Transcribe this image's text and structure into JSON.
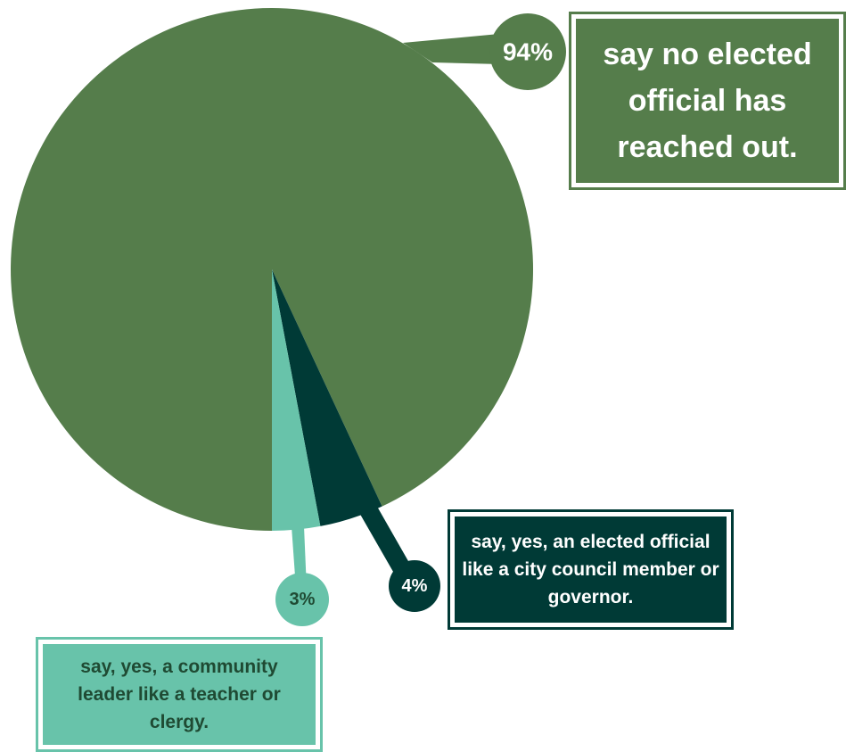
{
  "chart_data": {
    "type": "pie",
    "slices": [
      {
        "label": "say no elected official has reached out.",
        "value": 94,
        "value_label": "94%",
        "color": "#557d4b",
        "label_color": "#ffffff"
      },
      {
        "label": "say, yes, an elected official like a city council member or governor.",
        "value": 4,
        "value_label": "4%",
        "color": "#003a36",
        "label_color": "#ffffff"
      },
      {
        "label": "say, yes, a community leader like a teacher or clergy.",
        "value": 3,
        "value_label": "3%",
        "color": "#68c3aa",
        "label_color": "#1f4a33"
      }
    ]
  }
}
